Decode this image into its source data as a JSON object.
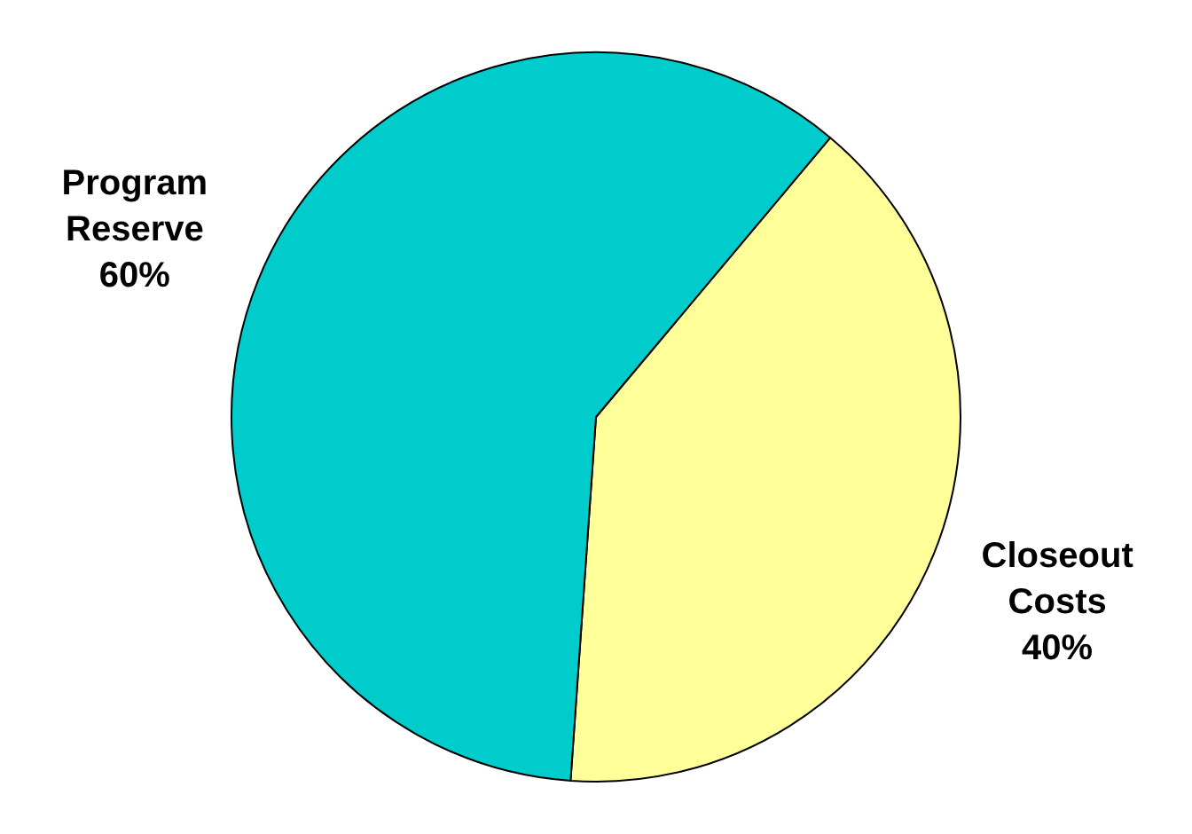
{
  "chart_data": {
    "type": "pie",
    "categories": [
      "Closeout Costs",
      "Program Reserve"
    ],
    "values": [
      40,
      60
    ],
    "colors": [
      "#ffff99",
      "#00cccc"
    ],
    "value_labels": [
      "40%",
      "60%"
    ],
    "legend": false
  }
}
